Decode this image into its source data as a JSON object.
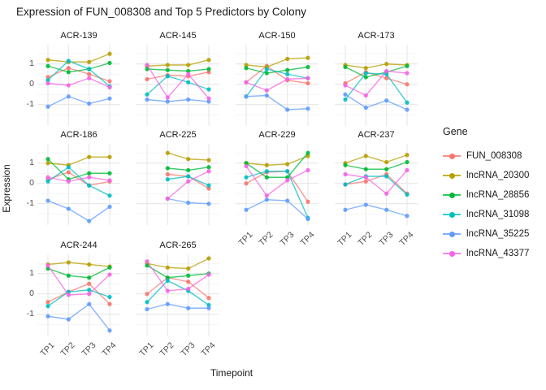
{
  "chart_data": {
    "type": "line",
    "title": "Expression of FUN_008308 and Top 5 Predictors by Colony",
    "xlabel": "Timepoint",
    "ylabel": "Expression",
    "x_labels": [
      "TP1",
      "TP2",
      "TP3",
      "TP4"
    ],
    "y_ticks": [
      "1",
      "0",
      "-1"
    ],
    "y_tick_values": [
      1,
      0,
      -1
    ],
    "ylim": [
      -2.05,
      1.95
    ],
    "grid": true,
    "legend_title": "Gene",
    "legend_position": "right",
    "genes": [
      {
        "name": "FUN_008308",
        "color": "#F8766D"
      },
      {
        "name": "lncRNA_20300",
        "color": "#B79F00"
      },
      {
        "name": "lncRNA_28856",
        "color": "#00BA38"
      },
      {
        "name": "lncRNA_31098",
        "color": "#00BFC4"
      },
      {
        "name": "lncRNA_35225",
        "color": "#619CFF"
      },
      {
        "name": "lncRNA_43377",
        "color": "#F564E3"
      }
    ],
    "facets": [
      {
        "colony": "ACR-139",
        "series": [
          [
            0.35,
            0.8,
            0.5,
            0.15
          ],
          [
            1.2,
            1.1,
            1.1,
            1.5
          ],
          [
            0.9,
            0.6,
            0.75,
            1.05
          ],
          [
            0.2,
            1.15,
            0.75,
            -0.1
          ],
          [
            -1.1,
            -0.6,
            -0.95,
            -0.7
          ],
          [
            0.05,
            -0.05,
            0.3,
            -0.15
          ]
        ]
      },
      {
        "colony": "ACR-145",
        "series": [
          [
            0.25,
            0.45,
            0.4,
            0.6
          ],
          [
            0.9,
            0.95,
            0.95,
            1.2
          ],
          [
            0.75,
            0.7,
            0.65,
            0.75
          ],
          [
            -0.5,
            0.4,
            0.1,
            -0.25
          ],
          [
            -0.75,
            -0.85,
            -0.75,
            -0.85
          ],
          [
            0.95,
            -0.65,
            0.5,
            -0.7
          ]
        ]
      },
      {
        "colony": "ACR-150",
        "series": [
          [
            0.1,
            0.9,
            0.2,
            0.05
          ],
          [
            0.95,
            0.85,
            1.25,
            1.3
          ],
          [
            0.8,
            0.55,
            0.7,
            0.85
          ],
          [
            -0.6,
            0.75,
            0.5,
            0.3
          ],
          [
            -0.6,
            -0.55,
            -1.25,
            -1.2
          ],
          [
            0.1,
            -0.3,
            0.25,
            0.3
          ]
        ]
      },
      {
        "colony": "ACR-173",
        "series": [
          [
            0.05,
            0.6,
            0.3,
            0.0
          ],
          [
            0.95,
            0.8,
            1.0,
            0.95
          ],
          [
            0.85,
            0.35,
            0.6,
            0.9
          ],
          [
            -0.75,
            0.55,
            0.5,
            -0.9
          ],
          [
            -0.5,
            -1.15,
            -0.8,
            -1.25
          ],
          [
            -0.05,
            -0.55,
            0.65,
            0.55
          ]
        ]
      },
      {
        "colony": "ACR-186",
        "series": [
          [
            0.2,
            0.55,
            -0.1,
            0.1
          ],
          [
            1.0,
            0.9,
            1.3,
            1.3
          ],
          [
            1.2,
            0.2,
            0.5,
            0.5
          ],
          [
            0.1,
            0.8,
            -0.1,
            -0.6
          ],
          [
            -0.85,
            -1.25,
            -1.85,
            -1.15
          ],
          [
            0.3,
            0.1,
            0.3,
            0.15
          ]
        ]
      },
      {
        "colony": "ACR-225",
        "series": [
          [
            null,
            0.45,
            0.35,
            -0.25
          ],
          [
            null,
            1.5,
            1.2,
            1.15
          ],
          [
            null,
            0.75,
            0.65,
            0.8
          ],
          [
            null,
            0.2,
            0.35,
            -0.1
          ],
          [
            null,
            -0.75,
            -0.95,
            -1.0
          ],
          [
            null,
            -0.75,
            0.1,
            0.6
          ]
        ]
      },
      {
        "colony": "ACR-229",
        "series": [
          [
            0.0,
            0.55,
            0.6,
            -0.9
          ],
          [
            1.0,
            0.9,
            0.95,
            1.35
          ],
          [
            1.0,
            0.3,
            0.3,
            1.5
          ],
          [
            0.3,
            0.6,
            0.6,
            -1.7
          ],
          [
            -1.3,
            -0.8,
            -0.85,
            -1.75
          ],
          [
            0.85,
            -0.6,
            0.15,
            0.65
          ]
        ]
      },
      {
        "colony": "ACR-237",
        "series": [
          [
            -0.05,
            0.1,
            0.45,
            -0.5
          ],
          [
            1.0,
            1.35,
            1.05,
            1.4
          ],
          [
            0.9,
            0.7,
            0.7,
            1.05
          ],
          [
            -0.05,
            0.35,
            0.35,
            -0.55
          ],
          [
            -1.3,
            -1.05,
            -1.3,
            -1.6
          ],
          [
            0.45,
            0.3,
            -0.5,
            0.65
          ]
        ]
      },
      {
        "colony": "ACR-244",
        "series": [
          [
            -0.4,
            0.1,
            0.5,
            -0.5
          ],
          [
            1.45,
            1.55,
            1.45,
            1.35
          ],
          [
            1.25,
            0.9,
            0.8,
            1.3
          ],
          [
            -0.6,
            0.1,
            0.2,
            -0.15
          ],
          [
            -1.1,
            -1.25,
            -0.5,
            -1.8
          ],
          [
            1.4,
            -0.05,
            0.0,
            0.95
          ]
        ]
      },
      {
        "colony": "ACR-265",
        "series": [
          [
            0.0,
            0.8,
            0.6,
            -0.2
          ],
          [
            1.5,
            1.3,
            1.25,
            1.75
          ],
          [
            1.4,
            0.8,
            0.9,
            1.0
          ],
          [
            -0.4,
            0.65,
            0.15,
            -0.55
          ],
          [
            -0.75,
            -0.5,
            -0.7,
            -0.7
          ],
          [
            1.6,
            0.15,
            0.25,
            0.95
          ]
        ]
      }
    ]
  }
}
